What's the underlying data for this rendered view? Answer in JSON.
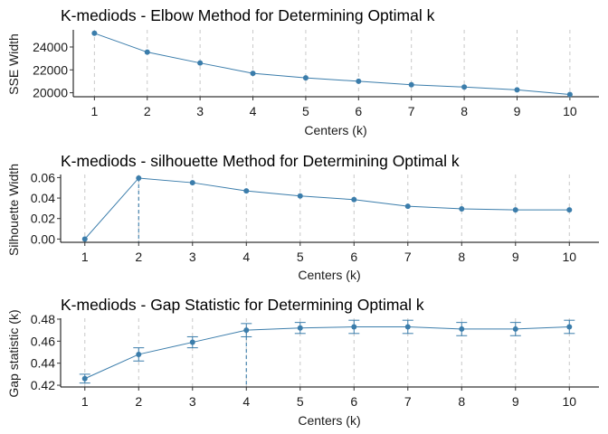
{
  "chart_data": [
    {
      "type": "line",
      "title": "K-mediods - Elbow Method for Determining Optimal k",
      "xlabel": "Centers (k)",
      "ylabel": "SSE Width",
      "x": [
        1,
        2,
        3,
        4,
        5,
        6,
        7,
        8,
        9,
        10
      ],
      "values": [
        25200,
        23550,
        22600,
        21700,
        21300,
        21000,
        20700,
        20500,
        20250,
        19850
      ],
      "yticks": [
        20000,
        22000,
        24000
      ],
      "ytick_labels": [
        "20000",
        "22000",
        "24000"
      ],
      "ylim": [
        19650,
        25500
      ],
      "xlim": [
        0.6,
        10.55
      ],
      "grid": "vertical dashed",
      "color": "#3b7dab"
    },
    {
      "type": "line",
      "title": "K-mediods - silhouette Method for Determining Optimal k",
      "xlabel": "Centers (k)",
      "ylabel": "Silhouette Width",
      "x": [
        1,
        2,
        3,
        4,
        5,
        6,
        7,
        8,
        9,
        10
      ],
      "values": [
        0.0,
        0.0595,
        0.055,
        0.047,
        0.042,
        0.0385,
        0.032,
        0.0295,
        0.0285,
        0.0285
      ],
      "yticks": [
        0.0,
        0.02,
        0.04,
        0.06
      ],
      "ytick_labels": [
        "0.00",
        "0.02",
        "0.04",
        "0.06"
      ],
      "ylim": [
        -0.0032,
        0.063
      ],
      "xlim": [
        0.55,
        10.55
      ],
      "optimal_k": 2,
      "grid": "vertical dashed",
      "color": "#3b7dab"
    },
    {
      "type": "line",
      "title": "K-mediods - Gap Statistic for Determining Optimal k",
      "xlabel": "Centers (k)",
      "ylabel": "Gap statistic (k)",
      "x": [
        1,
        2,
        3,
        4,
        5,
        6,
        7,
        8,
        9,
        10
      ],
      "values": [
        0.426,
        0.448,
        0.459,
        0.47,
        0.472,
        0.473,
        0.473,
        0.471,
        0.471,
        0.473
      ],
      "errors": [
        0.004,
        0.006,
        0.005,
        0.006,
        0.005,
        0.006,
        0.006,
        0.006,
        0.006,
        0.006
      ],
      "yticks": [
        0.42,
        0.44,
        0.46,
        0.48
      ],
      "ytick_labels": [
        "0.42",
        "0.44",
        "0.46",
        "0.48"
      ],
      "ylim": [
        0.4184,
        0.4808
      ],
      "xlim": [
        0.55,
        10.55
      ],
      "optimal_k": 4,
      "grid": "vertical dashed",
      "color": "#3b7dab"
    }
  ],
  "xtick_labels": [
    "1",
    "2",
    "3",
    "4",
    "5",
    "6",
    "7",
    "8",
    "9",
    "10"
  ]
}
